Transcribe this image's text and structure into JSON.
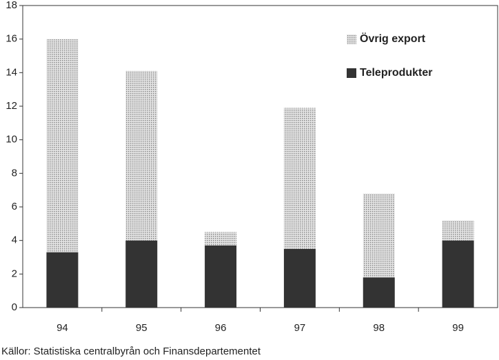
{
  "chart_data": {
    "type": "stacked-bar",
    "categories": [
      "94",
      "95",
      "96",
      "97",
      "98",
      "99"
    ],
    "series": [
      {
        "name": "Teleprodukter",
        "color": "#333333",
        "values": [
          3.3,
          4.0,
          3.7,
          3.5,
          1.8,
          4.0
        ]
      },
      {
        "name": "Övrig export",
        "color": "#c4c4c4",
        "values": [
          12.7,
          10.1,
          0.8,
          8.4,
          5.0,
          1.2
        ]
      }
    ],
    "ylim": [
      0,
      18
    ],
    "yticks": [
      0,
      2,
      4,
      6,
      8,
      10,
      12,
      14,
      16,
      18
    ],
    "legend": "upper-right",
    "source": "Källor: Statistiska centralbyrån och Finansdepartementet"
  }
}
